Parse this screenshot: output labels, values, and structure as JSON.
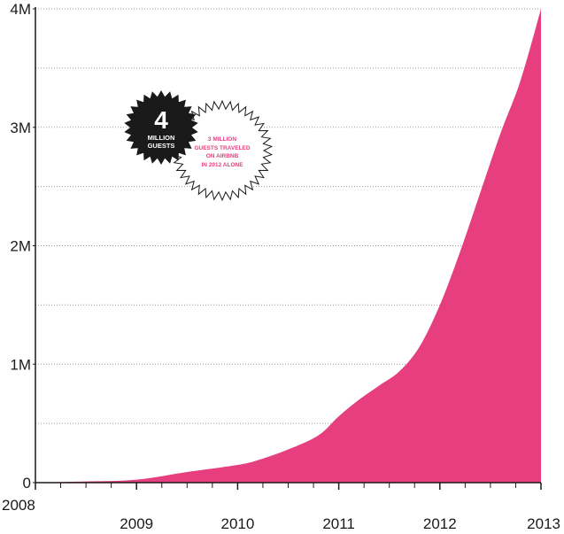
{
  "chart_data": {
    "type": "area",
    "x": [
      2008.0,
      2008.5,
      2009.0,
      2009.5,
      2010.0,
      2010.2,
      2010.5,
      2010.8,
      2011.0,
      2011.2,
      2011.4,
      2011.6,
      2011.8,
      2012.0,
      2012.2,
      2012.4,
      2012.6,
      2012.8,
      2013.0
    ],
    "series": [
      {
        "values": [
          0,
          10000,
          25000,
          90000,
          150000,
          190000,
          280000,
          400000,
          560000,
          700000,
          820000,
          940000,
          1150000,
          1500000,
          1950000,
          2450000,
          2950000,
          3400000,
          4000000
        ]
      }
    ],
    "xlim": [
      2008,
      2013
    ],
    "ylim": [
      0,
      4000000
    ],
    "x_ticks": [
      "2008",
      "2009",
      "2010",
      "2011",
      "2012",
      "2013"
    ],
    "y_ticks": [
      "0",
      "1M",
      "2M",
      "3M",
      "4M"
    ],
    "grid": "horizontal dotted",
    "colors": {
      "area": "#e63e7f",
      "axis": "#1a1a1a",
      "grid": "#9a9a9a"
    },
    "annotations": {
      "black_badge": {
        "number": "4",
        "line1": "MILLION",
        "line2": "GUESTS"
      },
      "outline_badge": {
        "line1": "3 MILLION",
        "line2": "GUESTS TRAVELED",
        "line3": "ON AIRBNB",
        "line4": "IN 2012 ALONE"
      }
    }
  }
}
